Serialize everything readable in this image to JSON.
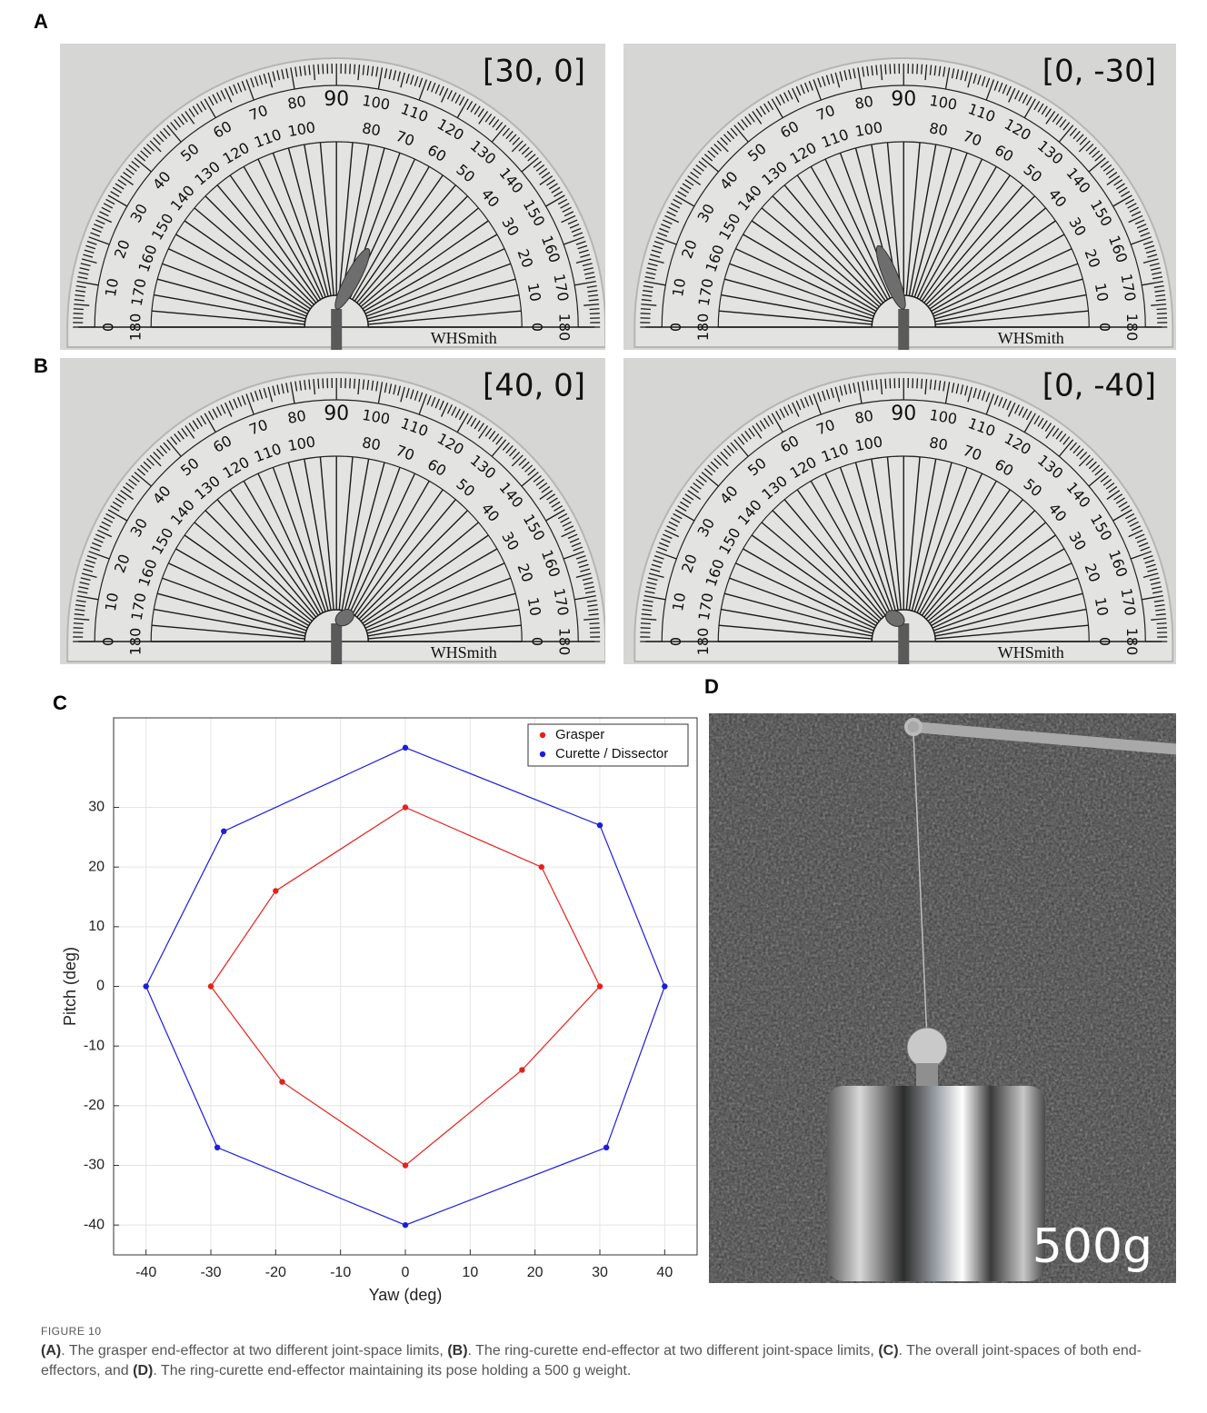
{
  "panels": [
    {
      "label": "A",
      "photos": [
        {
          "pose": "[30, 0]"
        },
        {
          "pose": "[0, -30]"
        }
      ]
    },
    {
      "label": "B",
      "photos": [
        {
          "pose": "[40, 0]"
        },
        {
          "pose": "[0, -40]"
        }
      ]
    }
  ],
  "protractor": {
    "outer_scale": [
      0,
      10,
      20,
      30,
      40,
      50,
      60,
      70,
      80,
      90,
      100,
      110,
      120,
      130,
      140,
      150,
      160,
      170,
      180
    ],
    "inner_scale": [
      180,
      170,
      160,
      150,
      140,
      130,
      120,
      110,
      100,
      90,
      80,
      70,
      60,
      50,
      40,
      30,
      20,
      10,
      0
    ],
    "brand": "WHSmith"
  },
  "panel_c_label": "C",
  "chart_data": {
    "type": "line",
    "xlabel": "Yaw (deg)",
    "ylabel": "Pitch (deg)",
    "xlim": [
      -45,
      45
    ],
    "ylim": [
      -45,
      45
    ],
    "xticks": [
      -40,
      -30,
      -20,
      -10,
      0,
      10,
      20,
      30,
      40
    ],
    "yticks": [
      -40,
      -30,
      -20,
      -10,
      0,
      10,
      20,
      30
    ],
    "grid": true,
    "closed": true,
    "legend": "upper right",
    "series": [
      {
        "name": "Grasper",
        "color": "#e8201c",
        "x": [
          0,
          21,
          30,
          18,
          0,
          -19,
          -30,
          -20
        ],
        "values": [
          30,
          20,
          0,
          -14,
          -30,
          -16,
          0,
          16
        ]
      },
      {
        "name": "Curette / Dissector",
        "color": "#1c1ce0",
        "x": [
          0,
          30,
          40,
          31,
          0,
          -29,
          -40,
          -28
        ],
        "values": [
          40,
          27,
          0,
          -27,
          -40,
          -27,
          0,
          26
        ]
      }
    ]
  },
  "panel_d": {
    "label": "D",
    "weight_label": "500g"
  },
  "caption": {
    "figure": "FIGURE 10",
    "parts": [
      "(A)",
      ". The grasper end-effector at two different joint-space limits, ",
      "(B)",
      ". The ring-curette end-effector at two different joint-space limits, ",
      "(C)",
      ". The overall joint-spaces of both end-effectors, and ",
      "(D)",
      ". The ring-curette end-effector maintaining its pose holding a 500 g weight."
    ]
  }
}
